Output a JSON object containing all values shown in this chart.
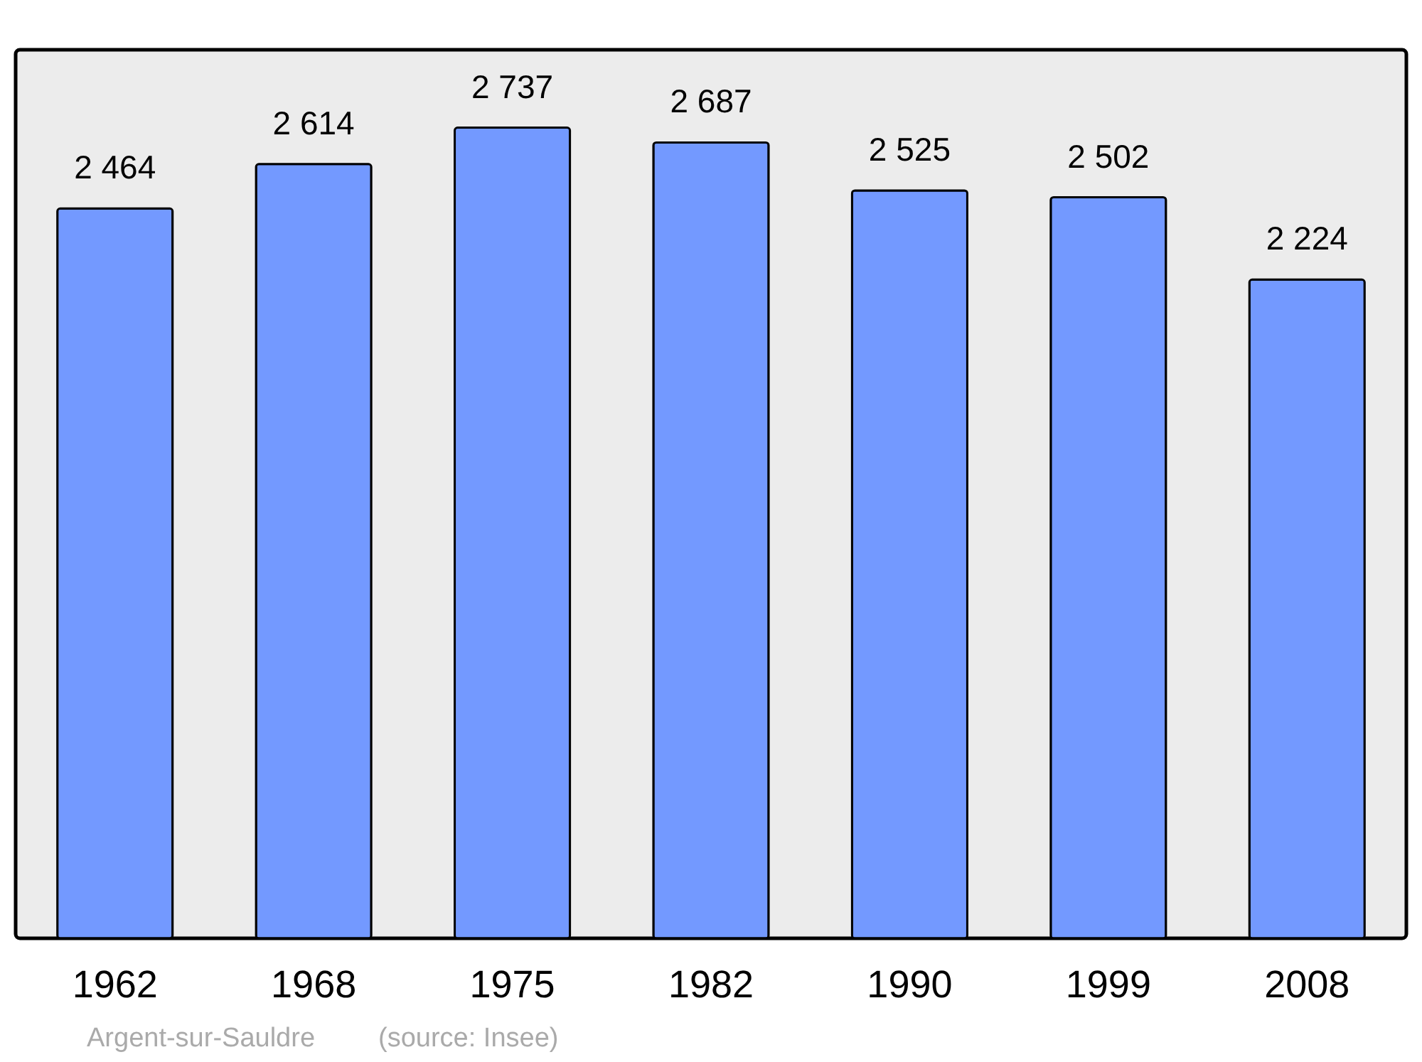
{
  "chart_data": {
    "type": "bar",
    "categories": [
      "1962",
      "1968",
      "1975",
      "1982",
      "1990",
      "1999",
      "2008"
    ],
    "values": [
      2464,
      2614,
      2737,
      2687,
      2525,
      2502,
      2224
    ],
    "value_labels": [
      "2 464",
      "2 614",
      "2 737",
      "2 687",
      "2 525",
      "2 502",
      "2 224"
    ],
    "color": "#7399ff",
    "ylim": [
      0,
      3000
    ],
    "tick_labels": "x",
    "grid": false,
    "annotations": [
      "Argent-sur-Sauldre",
      "(source: Insee)"
    ]
  }
}
